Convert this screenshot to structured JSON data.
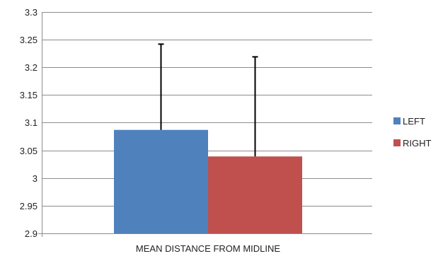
{
  "chart_data": {
    "type": "bar",
    "categories": [
      "MEAN DISTANCE FROM MIDLINE"
    ],
    "series": [
      {
        "name": "LEFT",
        "values": [
          3.087
        ],
        "error": [
          0.155
        ],
        "color": "#4f81bd"
      },
      {
        "name": "RIGHT",
        "values": [
          3.039
        ],
        "error": [
          0.18
        ],
        "color": "#c0504d"
      }
    ],
    "ylim": [
      2.9,
      3.3
    ],
    "yticks": [
      2.9,
      2.95,
      3,
      3.05,
      3.1,
      3.15,
      3.2,
      3.25,
      3.3
    ],
    "xlabel": "",
    "ylabel": "",
    "grid": true,
    "legend_position": "right"
  }
}
